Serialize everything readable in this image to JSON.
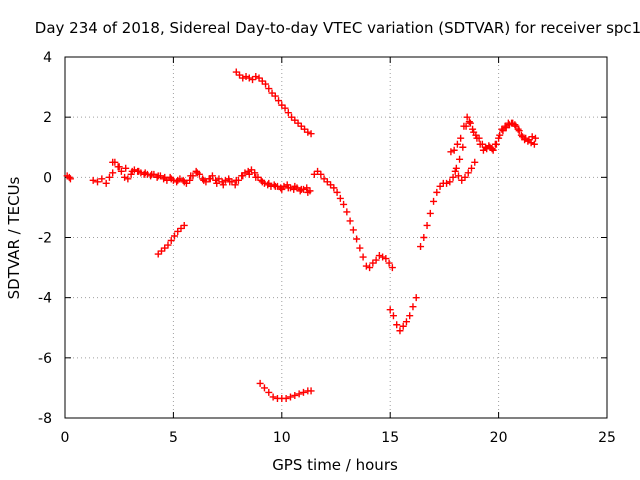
{
  "chart_data": {
    "type": "scatter",
    "title": "Day 234 of 2018, Sidereal Day-to-day VTEC variation (SDTVAR) for receiver spc1",
    "xlabel": "GPS time / hours",
    "ylabel": "SDTVAR / TECUs",
    "xlim": [
      0,
      25
    ],
    "ylim": [
      -8,
      4
    ],
    "xticks": [
      0,
      5,
      10,
      15,
      20,
      25
    ],
    "yticks": [
      -8,
      -6,
      -4,
      -2,
      0,
      2,
      4
    ],
    "grid": true,
    "marker": "+",
    "color": "#ff0000",
    "series": [
      {
        "x": [
          0.1,
          0.2,
          0.25
        ],
        "y": [
          0.05,
          0.0,
          -0.05
        ]
      },
      {
        "x": [
          1.3,
          1.5,
          1.7,
          1.9,
          2.05,
          2.2,
          2.3,
          2.45,
          2.6,
          2.75,
          2.9,
          3.05,
          3.2,
          3.35,
          3.5,
          3.65,
          3.8,
          3.95,
          4.1,
          4.25,
          4.4,
          4.55,
          4.7,
          4.85,
          5.0,
          5.15,
          5.3,
          5.45,
          5.6,
          5.75,
          5.9,
          6.05,
          6.2,
          6.35,
          6.5,
          6.65,
          6.8,
          6.95,
          7.1,
          7.25,
          7.4,
          7.55,
          7.7,
          7.85,
          8.0,
          8.15,
          8.3,
          8.45,
          8.6,
          8.75,
          8.9,
          9.05,
          9.2,
          9.35,
          9.5,
          9.65,
          9.8,
          9.95,
          10.1,
          10.25,
          10.4,
          10.55,
          10.7,
          10.85,
          11.0,
          11.15,
          11.3
        ],
        "y": [
          -0.1,
          -0.15,
          -0.05,
          -0.2,
          0.0,
          0.15,
          0.5,
          0.35,
          0.2,
          0.0,
          -0.05,
          0.1,
          0.25,
          0.2,
          0.15,
          0.1,
          0.1,
          0.05,
          0.1,
          0.0,
          0.05,
          -0.05,
          -0.1,
          0.0,
          -0.1,
          -0.15,
          -0.05,
          -0.1,
          -0.2,
          -0.1,
          0.05,
          0.2,
          0.1,
          -0.05,
          -0.15,
          -0.05,
          0.05,
          -0.1,
          -0.05,
          -0.15,
          -0.1,
          -0.05,
          -0.15,
          -0.25,
          -0.1,
          0.05,
          0.15,
          0.2,
          0.25,
          0.15,
          0.0,
          -0.1,
          -0.2,
          -0.25,
          -0.3,
          -0.25,
          -0.3,
          -0.35,
          -0.3,
          -0.25,
          -0.35,
          -0.4,
          -0.35,
          -0.45,
          -0.4,
          -0.35,
          -0.45
        ]
      },
      {
        "x": [
          2.2,
          2.5,
          2.8,
          3.1,
          3.4,
          3.7,
          4.0,
          4.3,
          4.6,
          4.9,
          5.2,
          5.5,
          5.8,
          6.1,
          6.4,
          6.7,
          7.0,
          7.3,
          7.6,
          7.9,
          8.2,
          8.5,
          8.8,
          9.1,
          9.4,
          9.7,
          10.0,
          10.3,
          10.6,
          10.9,
          11.2
        ],
        "y": [
          0.5,
          0.35,
          0.3,
          0.2,
          0.2,
          0.15,
          0.1,
          0.05,
          0.0,
          -0.05,
          -0.1,
          -0.15,
          0.05,
          0.15,
          -0.1,
          -0.05,
          -0.2,
          -0.25,
          -0.15,
          -0.1,
          0.05,
          0.1,
          0.0,
          -0.15,
          -0.2,
          -0.3,
          -0.4,
          -0.35,
          -0.3,
          -0.4,
          -0.5
        ]
      },
      {
        "x": [
          4.3,
          4.45,
          4.6,
          4.75,
          4.9,
          5.05,
          5.2,
          5.35,
          5.5
        ],
        "y": [
          -2.55,
          -2.45,
          -2.35,
          -2.25,
          -2.1,
          -1.95,
          -1.8,
          -1.7,
          -1.6
        ]
      },
      {
        "x": [
          7.9,
          8.05,
          8.2,
          8.35,
          8.5,
          8.65,
          8.8,
          8.95,
          9.1,
          9.25,
          9.4,
          9.55,
          9.7,
          9.85,
          10.0,
          10.15,
          10.3,
          10.45,
          10.6,
          10.75,
          10.9,
          11.05,
          11.2,
          11.35
        ],
        "y": [
          3.5,
          3.4,
          3.3,
          3.35,
          3.3,
          3.25,
          3.35,
          3.3,
          3.2,
          3.1,
          2.95,
          2.8,
          2.7,
          2.55,
          2.4,
          2.3,
          2.15,
          2.0,
          1.9,
          1.8,
          1.7,
          1.6,
          1.5,
          1.45
        ]
      },
      {
        "x": [
          9.0,
          9.2,
          9.4,
          9.6,
          9.8,
          10.0,
          10.2,
          10.4,
          10.6,
          10.8,
          11.0,
          11.2,
          11.35
        ],
        "y": [
          -6.85,
          -7.0,
          -7.15,
          -7.3,
          -7.35,
          -7.35,
          -7.35,
          -7.3,
          -7.25,
          -7.2,
          -7.15,
          -7.1,
          -7.1
        ]
      },
      {
        "x": [
          11.5,
          11.65,
          11.8,
          11.95,
          12.1,
          12.25,
          12.4,
          12.55,
          12.7,
          12.85,
          13.0,
          13.15,
          13.3,
          13.45,
          13.6,
          13.75,
          13.9,
          14.05,
          14.2,
          14.35,
          14.5,
          14.65,
          14.8,
          14.95,
          15.1
        ],
        "y": [
          0.1,
          0.2,
          0.1,
          -0.05,
          -0.15,
          -0.25,
          -0.35,
          -0.5,
          -0.7,
          -0.9,
          -1.15,
          -1.45,
          -1.75,
          -2.05,
          -2.35,
          -2.65,
          -2.95,
          -3.0,
          -2.85,
          -2.75,
          -2.6,
          -2.65,
          -2.7,
          -2.85,
          -3.0
        ]
      },
      {
        "x": [
          15.0,
          15.15,
          15.3,
          15.45,
          15.6,
          15.75,
          15.9,
          16.05,
          16.2
        ],
        "y": [
          -4.4,
          -4.6,
          -4.9,
          -5.1,
          -4.95,
          -4.8,
          -4.6,
          -4.3,
          -4.0
        ]
      },
      {
        "x": [
          16.4,
          16.55,
          16.7,
          16.85,
          17.0,
          17.15,
          17.3,
          17.45,
          17.6,
          17.75,
          17.9,
          18.05,
          18.2,
          18.35,
          18.5,
          18.65,
          18.8,
          18.95,
          19.1,
          19.25,
          19.4,
          19.55,
          19.7,
          19.85,
          20.0,
          20.15,
          20.3,
          20.45,
          20.6,
          20.75,
          20.9,
          21.05,
          21.2,
          21.35,
          21.5,
          21.65
        ],
        "y": [
          -2.3,
          -2.0,
          -1.6,
          -1.2,
          -0.8,
          -0.5,
          -0.3,
          -0.2,
          -0.2,
          -0.15,
          0.0,
          0.3,
          0.6,
          1.0,
          1.7,
          1.85,
          1.6,
          1.4,
          1.3,
          1.1,
          1.0,
          1.05,
          0.95,
          1.1,
          1.3,
          1.6,
          1.7,
          1.8,
          1.8,
          1.75,
          1.6,
          1.4,
          1.25,
          1.2,
          1.15,
          1.1
        ]
      },
      {
        "x": [
          17.8,
          17.95,
          18.1,
          18.25,
          18.4,
          18.55,
          18.7,
          18.85,
          19.0,
          19.15,
          19.3,
          19.45,
          19.6,
          19.75,
          19.9,
          20.05,
          20.2,
          20.35,
          20.5,
          20.65,
          20.8,
          20.95,
          21.1,
          21.25,
          21.4,
          21.55,
          21.7
        ],
        "y": [
          0.85,
          0.9,
          1.1,
          1.3,
          1.7,
          2.0,
          1.8,
          1.5,
          1.3,
          1.1,
          0.9,
          0.95,
          1.0,
          0.9,
          1.1,
          1.4,
          1.55,
          1.65,
          1.75,
          1.8,
          1.7,
          1.55,
          1.35,
          1.3,
          1.25,
          1.35,
          1.3
        ]
      },
      {
        "x": [
          18.0,
          18.15,
          18.3,
          18.45,
          18.6,
          18.75,
          18.9
        ],
        "y": [
          0.2,
          0.05,
          -0.1,
          0.0,
          0.15,
          0.3,
          0.5
        ]
      }
    ]
  }
}
